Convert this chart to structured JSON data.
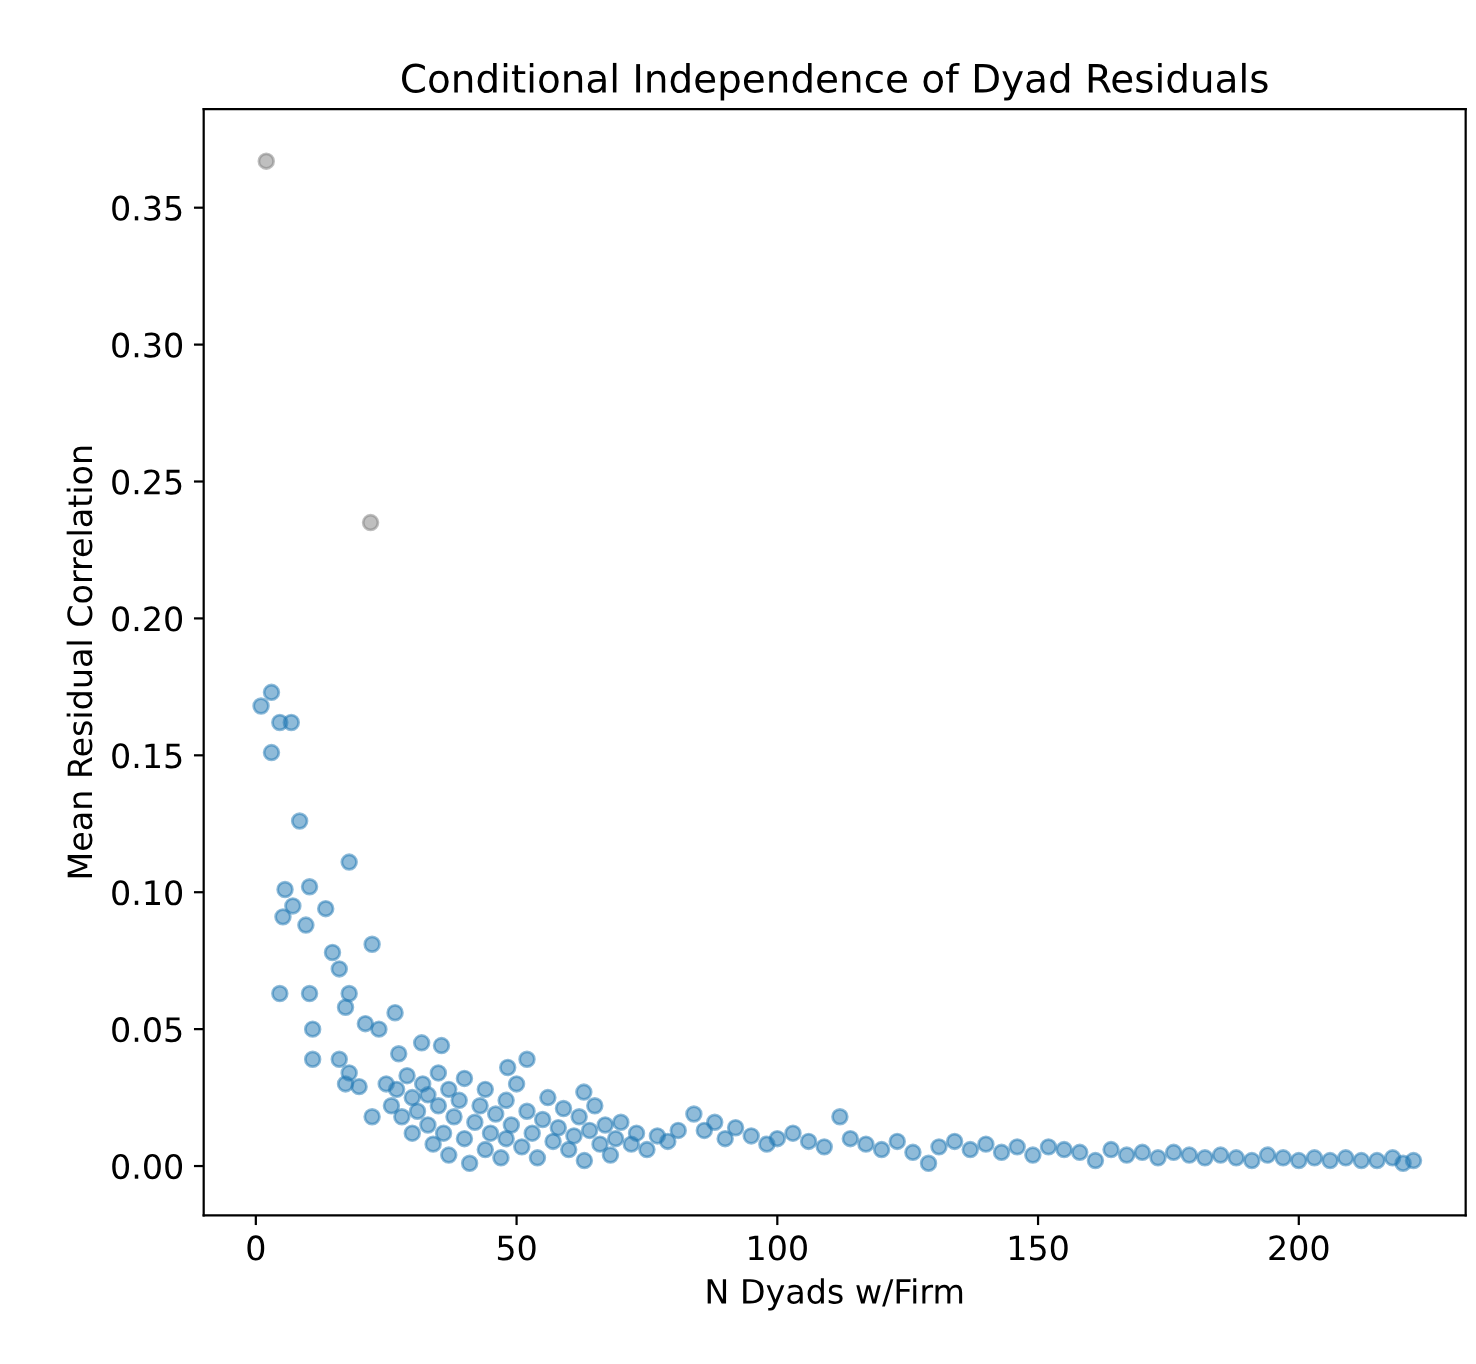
{
  "chart_data": {
    "type": "scatter",
    "title": "Conditional Independence of Dyad Residuals",
    "xlabel": "N Dyads w/Firm",
    "ylabel": "Mean Residual Correlation",
    "xlim": [
      -10,
      232
    ],
    "ylim": [
      -0.018,
      0.386
    ],
    "xticks": [
      0,
      50,
      100,
      150,
      200
    ],
    "yticks": [
      {
        "value": 0,
        "label": "0.00"
      },
      {
        "value": 0.05,
        "label": "0.05"
      },
      {
        "value": 0.1,
        "label": "0.10"
      },
      {
        "value": 0.15,
        "label": "0.15"
      },
      {
        "value": 0.2,
        "label": "0.20"
      },
      {
        "value": 0.25,
        "label": "0.25"
      },
      {
        "value": 0.3,
        "label": "0.30"
      },
      {
        "value": 0.35,
        "label": "0.35"
      }
    ],
    "grid": false,
    "legend": false,
    "marker": "circle",
    "series": [
      {
        "color": "#808080",
        "x": [
          2,
          22
        ],
        "values": [
          0.367,
          0.235
        ]
      },
      {
        "color": "#1f77b4",
        "x": [
          1,
          3,
          4.6,
          6.8,
          3,
          8.4,
          17.9,
          5.6,
          10.3,
          7.1,
          5.2,
          9.6,
          13.4,
          22.3,
          14.7,
          16,
          4.6,
          10.3,
          17.9,
          17.2,
          21,
          26.7,
          10.9,
          23.6,
          10.9,
          16,
          17.9,
          17.2,
          19.8,
          31.8,
          35.6,
          27.4,
          52,
          48.3,
          62.9,
          22.3,
          25,
          26,
          27,
          28,
          29,
          30,
          30,
          31,
          32,
          33,
          33,
          34,
          35,
          35,
          36,
          37,
          37,
          38,
          39,
          40,
          40,
          41,
          42,
          43,
          44,
          44,
          45,
          46,
          47,
          48,
          48,
          49,
          50,
          51,
          52,
          53,
          54,
          55,
          56,
          57,
          58,
          59,
          60,
          61,
          62,
          63,
          64,
          65,
          66,
          67,
          68,
          69,
          70,
          72,
          73,
          75,
          77,
          79,
          81,
          84,
          86,
          88,
          90,
          92,
          95,
          98,
          100,
          103,
          106,
          109,
          112,
          114,
          117,
          120,
          123,
          126,
          129,
          131,
          134,
          137,
          140,
          143,
          146,
          149,
          152,
          155,
          158,
          161,
          164,
          167,
          170,
          173,
          176,
          179,
          182,
          185,
          188,
          191,
          194,
          197,
          200,
          203,
          206,
          209,
          212,
          215,
          218,
          220,
          222
        ],
        "values": [
          0.168,
          0.173,
          0.162,
          0.162,
          0.151,
          0.126,
          0.111,
          0.101,
          0.102,
          0.095,
          0.091,
          0.088,
          0.094,
          0.081,
          0.078,
          0.072,
          0.063,
          0.063,
          0.063,
          0.058,
          0.052,
          0.056,
          0.05,
          0.05,
          0.039,
          0.039,
          0.034,
          0.03,
          0.029,
          0.045,
          0.044,
          0.041,
          0.039,
          0.036,
          0.027,
          0.018,
          0.03,
          0.022,
          0.028,
          0.018,
          0.033,
          0.025,
          0.012,
          0.02,
          0.03,
          0.015,
          0.026,
          0.008,
          0.022,
          0.034,
          0.012,
          0.028,
          0.004,
          0.018,
          0.024,
          0.01,
          0.032,
          0.001,
          0.016,
          0.022,
          0.006,
          0.028,
          0.012,
          0.019,
          0.003,
          0.024,
          0.01,
          0.015,
          0.03,
          0.007,
          0.02,
          0.012,
          0.003,
          0.017,
          0.025,
          0.009,
          0.014,
          0.021,
          0.006,
          0.011,
          0.018,
          0.002,
          0.013,
          0.022,
          0.008,
          0.015,
          0.004,
          0.01,
          0.016,
          0.008,
          0.012,
          0.006,
          0.011,
          0.009,
          0.013,
          0.019,
          0.013,
          0.016,
          0.01,
          0.014,
          0.011,
          0.008,
          0.01,
          0.012,
          0.009,
          0.007,
          0.018,
          0.01,
          0.008,
          0.006,
          0.009,
          0.005,
          0.001,
          0.007,
          0.009,
          0.006,
          0.008,
          0.005,
          0.007,
          0.004,
          0.007,
          0.006,
          0.005,
          0.002,
          0.006,
          0.004,
          0.005,
          0.003,
          0.005,
          0.004,
          0.003,
          0.004,
          0.003,
          0.002,
          0.004,
          0.003,
          0.002,
          0.003,
          0.002,
          0.003,
          0.002,
          0.002,
          0.003,
          0.001,
          0.002
        ]
      }
    ]
  }
}
